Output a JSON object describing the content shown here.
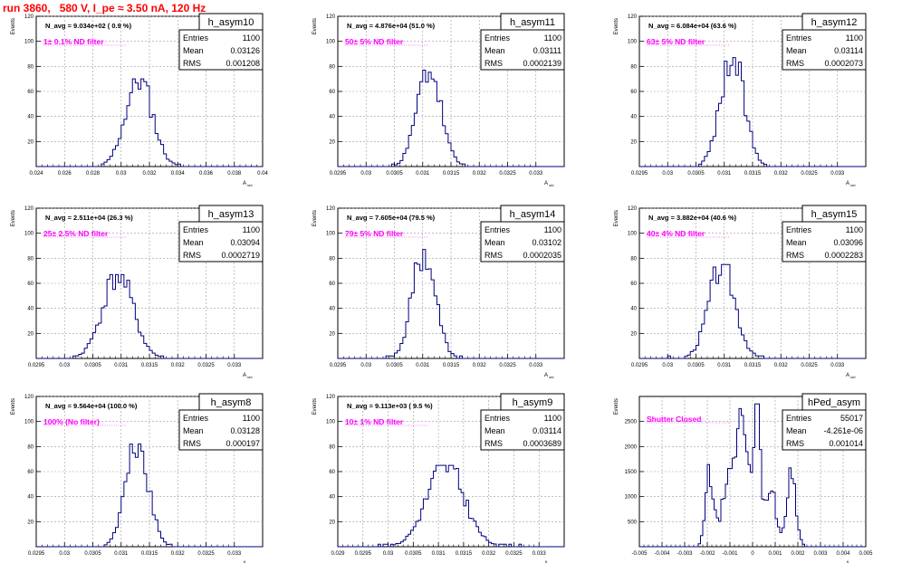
{
  "page": {
    "title": "run 3860,   580 V, I_pe ≈ 3.50 nA, 120 Hz"
  },
  "colors": {
    "histogram": "#00007f",
    "annotation": "#ff00ff",
    "title": "#ff0000",
    "grid": "#9a9a9a"
  },
  "chart_data": [
    {
      "type": "bar",
      "name": "h_asym10",
      "navg": "N_avg = 9.034e+02 ( 0.9 %)",
      "filter": "1± 0.1% ND filter",
      "stats": {
        "Entries": "1100",
        "Mean": "0.03126",
        "RMS": "0.001208"
      },
      "xlabel": "A_uid",
      "ylabel": "Events",
      "xlim": [
        0.024,
        0.04
      ],
      "ylim": [
        0,
        120
      ],
      "xticks": [
        "0.024",
        "0.026",
        "0.028",
        "0.03",
        "0.032",
        "0.034",
        "0.036",
        "0.038",
        "0.04"
      ],
      "yticks": [
        "20",
        "40",
        "60",
        "80",
        "100",
        "120"
      ],
      "peak": 70,
      "seed": 11
    },
    {
      "type": "bar",
      "name": "h_asym11",
      "navg": "N_avg = 4.876e+04 (51.0 %)",
      "filter": "50± 5% ND filter",
      "stats": {
        "Entries": "1100",
        "Mean": "0.03111",
        "RMS": "0.0002139"
      },
      "xlabel": "A_uid",
      "ylabel": "Events",
      "xlim": [
        0.0295,
        0.0335
      ],
      "ylim": [
        0,
        120
      ],
      "xticks": [
        "0.0295",
        "0.03",
        "0.0305",
        "0.031",
        "0.0315",
        "0.032",
        "0.0325",
        "0.033"
      ],
      "yticks": [
        "20",
        "40",
        "60",
        "80",
        "100",
        "120"
      ],
      "peak": 78,
      "seed": 23
    },
    {
      "type": "bar",
      "name": "h_asym12",
      "navg": "N_avg = 6.084e+04 (63.6 %)",
      "filter": "63± 5% ND filter",
      "stats": {
        "Entries": "1100",
        "Mean": "0.03114",
        "RMS": "0.0002073"
      },
      "xlabel": "A_uid",
      "ylabel": "Events",
      "xlim": [
        0.0295,
        0.0335
      ],
      "ylim": [
        0,
        120
      ],
      "xticks": [
        "0.0295",
        "0.03",
        "0.0305",
        "0.031",
        "0.0315",
        "0.032",
        "0.0325",
        "0.033"
      ],
      "yticks": [
        "20",
        "40",
        "60",
        "80",
        "100",
        "120"
      ],
      "peak": 87,
      "seed": 37
    },
    {
      "type": "bar",
      "name": "h_asym13",
      "navg": "N_avg = 2.511e+04 (26.3 %)",
      "filter": "25± 2.5% ND filter",
      "stats": {
        "Entries": "1100",
        "Mean": "0.03094",
        "RMS": "0.0002719"
      },
      "xlabel": "A_uid",
      "ylabel": "Events",
      "xlim": [
        0.0295,
        0.0335
      ],
      "ylim": [
        0,
        120
      ],
      "xticks": [
        "0.0295",
        "0.03",
        "0.0305",
        "0.031",
        "0.0315",
        "0.032",
        "0.0325",
        "0.033"
      ],
      "yticks": [
        "20",
        "40",
        "60",
        "80",
        "100",
        "120"
      ],
      "peak": 67,
      "seed": 41
    },
    {
      "type": "bar",
      "name": "h_asym14",
      "navg": "N_avg = 7.605e+04 (79.5 %)",
      "filter": "79± 5% ND filter",
      "stats": {
        "Entries": "1100",
        "Mean": "0.03102",
        "RMS": "0.0002035"
      },
      "xlabel": "A_uid",
      "ylabel": "Events",
      "xlim": [
        0.0295,
        0.0335
      ],
      "ylim": [
        0,
        120
      ],
      "xticks": [
        "0.0295",
        "0.03",
        "0.0305",
        "0.031",
        "0.0315",
        "0.032",
        "0.0325",
        "0.033"
      ],
      "yticks": [
        "20",
        "40",
        "60",
        "80",
        "100",
        "120"
      ],
      "peak": 87,
      "seed": 53
    },
    {
      "type": "bar",
      "name": "h_asym15",
      "navg": "N_avg = 3.882e+04 (40.6 %)",
      "filter": "40± 4% ND filter",
      "stats": {
        "Entries": "1100",
        "Mean": "0.03096",
        "RMS": "0.0002283"
      },
      "xlabel": "A_uid",
      "ylabel": "Events",
      "xlim": [
        0.0295,
        0.0335
      ],
      "ylim": [
        0,
        120
      ],
      "xticks": [
        "0.0295",
        "0.03",
        "0.0305",
        "0.031",
        "0.0315",
        "0.032",
        "0.0325",
        "0.033"
      ],
      "yticks": [
        "20",
        "40",
        "60",
        "80",
        "100",
        "120"
      ],
      "peak": 75,
      "seed": 67
    },
    {
      "type": "bar",
      "name": "h_asym8",
      "navg": "N_avg = 9.564e+04 (100.0 %)",
      "filter": "100% (No filter)",
      "stats": {
        "Entries": "1100",
        "Mean": "0.03128",
        "RMS": "0.000197"
      },
      "xlabel": "A_uid",
      "ylabel": "Events",
      "xlim": [
        0.0295,
        0.0335
      ],
      "ylim": [
        0,
        120
      ],
      "xticks": [
        "0.0295",
        "0.03",
        "0.0305",
        "0.031",
        "0.0315",
        "0.032",
        "0.0325",
        "0.033"
      ],
      "yticks": [
        "20",
        "40",
        "60",
        "80",
        "100",
        "120"
      ],
      "peak": 82,
      "seed": 71
    },
    {
      "type": "bar",
      "name": "h_asym9",
      "navg": "N_avg = 9.113e+03 ( 9.5 %)",
      "filter": "10± 1% ND filter",
      "stats": {
        "Entries": "1100",
        "Mean": "0.03114",
        "RMS": "0.0003689"
      },
      "xlabel": "A_uid",
      "ylabel": "Events",
      "xlim": [
        0.029,
        0.0335
      ],
      "ylim": [
        0,
        120
      ],
      "xticks": [
        "0.029",
        "0.0295",
        "0.03",
        "0.0305",
        "0.031",
        "0.0315",
        "0.032",
        "0.0325",
        "0.033"
      ],
      "yticks": [
        "20",
        "40",
        "60",
        "80",
        "100",
        "120"
      ],
      "peak": 65,
      "seed": 83
    },
    {
      "type": "bar",
      "name": "hPed_asym",
      "navg": "",
      "filter": "Shutter Closed",
      "stats": {
        "Entries": "55017",
        "Mean": "-4.261e-06",
        "RMS": "0.001014"
      },
      "xlabel": "A_uid",
      "ylabel": "Events",
      "xlim": [
        -0.005,
        0.005
      ],
      "ylim": [
        0,
        3000
      ],
      "xticks": [
        "-0.005",
        "-0.004",
        "-0.003",
        "-0.002",
        "-0.001",
        "0",
        "0.001",
        "0.002",
        "0.003",
        "0.004",
        "0.005"
      ],
      "yticks": [
        "500",
        "1000",
        "1500",
        "2000",
        "2500"
      ],
      "peak": 2850,
      "seed": 97
    }
  ]
}
